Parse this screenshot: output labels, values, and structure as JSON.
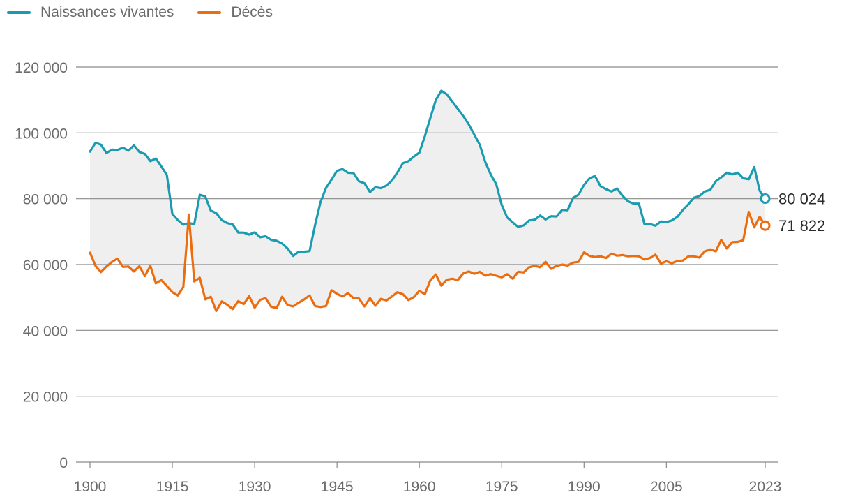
{
  "chart_data": {
    "type": "line",
    "title": "",
    "xlabel": "",
    "ylabel": "",
    "xlim": [
      1900,
      2023
    ],
    "ylim": [
      0,
      120000
    ],
    "x_ticks": [
      1900,
      1915,
      1930,
      1945,
      1960,
      1975,
      1990,
      2005,
      2023
    ],
    "x_tick_labels": [
      "1900",
      "1915",
      "1930",
      "1945",
      "1960",
      "1975",
      "1990",
      "2005",
      "2023"
    ],
    "y_ticks": [
      0,
      20000,
      40000,
      60000,
      80000,
      100000,
      120000
    ],
    "y_tick_labels": [
      "0",
      "20 000",
      "40 000",
      "60 000",
      "80 000",
      "100 000",
      "120 000"
    ],
    "grid": true,
    "legend_position": "top-left",
    "fill_between_series": true,
    "colors": {
      "births": "#1a9bb0",
      "deaths": "#ec6d10",
      "fill": "#efefef",
      "grid": "#8a8a8a",
      "text": "#6b6b6b"
    },
    "x": [
      1900,
      1901,
      1902,
      1903,
      1904,
      1905,
      1906,
      1907,
      1908,
      1909,
      1910,
      1911,
      1912,
      1913,
      1914,
      1915,
      1916,
      1917,
      1918,
      1919,
      1920,
      1921,
      1922,
      1923,
      1924,
      1925,
      1926,
      1927,
      1928,
      1929,
      1930,
      1931,
      1932,
      1933,
      1934,
      1935,
      1936,
      1937,
      1938,
      1939,
      1940,
      1941,
      1942,
      1943,
      1944,
      1945,
      1946,
      1947,
      1948,
      1949,
      1950,
      1951,
      1952,
      1953,
      1954,
      1955,
      1956,
      1957,
      1958,
      1959,
      1960,
      1961,
      1962,
      1963,
      1964,
      1965,
      1966,
      1967,
      1968,
      1969,
      1970,
      1971,
      1972,
      1973,
      1974,
      1975,
      1976,
      1977,
      1978,
      1979,
      1980,
      1981,
      1982,
      1983,
      1984,
      1985,
      1986,
      1987,
      1988,
      1989,
      1990,
      1991,
      1992,
      1993,
      1994,
      1995,
      1996,
      1997,
      1998,
      1999,
      2000,
      2001,
      2002,
      2003,
      2004,
      2005,
      2006,
      2007,
      2008,
      2009,
      2010,
      2011,
      2012,
      2013,
      2014,
      2015,
      2016,
      2017,
      2018,
      2019,
      2020,
      2021,
      2022,
      2023
    ],
    "series": [
      {
        "name": "Naissances vivantes",
        "key": "births",
        "values": [
          94300,
          97000,
          96400,
          93900,
          94900,
          94800,
          95500,
          94600,
          96200,
          94200,
          93600,
          91400,
          92200,
          89800,
          87200,
          75400,
          73500,
          72100,
          72600,
          72300,
          81200,
          80700,
          76400,
          75600,
          73500,
          72600,
          72200,
          69700,
          69700,
          69100,
          69800,
          68300,
          68600,
          67500,
          67200,
          66400,
          64900,
          62600,
          63900,
          63900,
          64100,
          72000,
          79000,
          83300,
          85800,
          88500,
          89000,
          87900,
          87800,
          85300,
          84700,
          82000,
          83500,
          83200,
          84000,
          85500,
          88000,
          90800,
          91400,
          92800,
          94000,
          99000,
          104500,
          110000,
          112800,
          111700,
          109500,
          107300,
          105100,
          102600,
          99500,
          96400,
          91200,
          87400,
          84400,
          78200,
          74300,
          72800,
          71400,
          71900,
          73400,
          73600,
          74900,
          73700,
          74700,
          74600,
          76600,
          76500,
          80300,
          81200,
          84200,
          86200,
          86900,
          83800,
          82900,
          82200,
          83100,
          80900,
          79200,
          78500,
          78500,
          72300,
          72300,
          71800,
          73100,
          72900,
          73400,
          74500,
          76600,
          78300,
          80300,
          80800,
          82200,
          82700,
          85300,
          86500,
          87900,
          87400,
          87900,
          86200,
          85900,
          89600,
          82400,
          80024
        ]
      },
      {
        "name": "Décès",
        "key": "deaths",
        "values": [
          63600,
          59600,
          57700,
          59400,
          60800,
          61800,
          59300,
          59400,
          57900,
          59500,
          56500,
          59600,
          54300,
          55300,
          53500,
          51600,
          50600,
          53200,
          75200,
          54900,
          56000,
          49400,
          50200,
          45900,
          48800,
          47800,
          46500,
          48900,
          48000,
          50400,
          46900,
          49300,
          49800,
          47200,
          46800,
          50200,
          47700,
          47300,
          48400,
          49400,
          50600,
          47400,
          47100,
          47400,
          52200,
          51100,
          50300,
          51300,
          49800,
          49700,
          47300,
          49800,
          47500,
          49600,
          49100,
          50300,
          51600,
          51000,
          49200,
          50100,
          52000,
          51000,
          55200,
          57000,
          53600,
          55400,
          55700,
          55300,
          57300,
          57900,
          57200,
          57800,
          56600,
          57100,
          56600,
          56100,
          57100,
          55700,
          57800,
          57600,
          59200,
          59600,
          59200,
          60800,
          58700,
          59600,
          60000,
          59700,
          60600,
          60800,
          63700,
          62600,
          62300,
          62500,
          62000,
          63300,
          62700,
          62900,
          62500,
          62600,
          62500,
          61500,
          62000,
          63000,
          60300,
          61000,
          60400,
          61100,
          61200,
          62500,
          62500,
          62100,
          64000,
          64600,
          64000,
          67500,
          64900,
          66800,
          66900,
          67400,
          76000,
          71300,
          74500,
          71822
        ]
      }
    ],
    "end_labels": [
      {
        "series": "births",
        "text": "80 024"
      },
      {
        "series": "deaths",
        "text": "71 822"
      }
    ]
  }
}
